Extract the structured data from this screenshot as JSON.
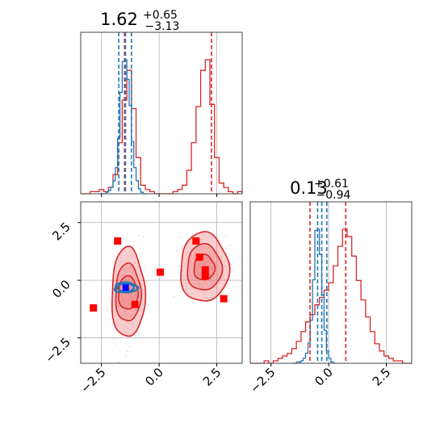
{
  "chart_data": {
    "type": "corner",
    "parameters": [
      {
        "title_main": "1.62",
        "title_sup": "+0.65",
        "title_sub": "−3.13"
      },
      {
        "title_main": "0.13",
        "title_sup": "+0.61",
        "title_sub": "−0.94"
      }
    ],
    "x_ticks": [
      "−2.5",
      "0.0",
      "2.5"
    ],
    "y_ticks": [
      "2.5",
      "0.0",
      "−2.5"
    ],
    "xlim": [
      -3.4,
      3.6
    ],
    "ylim": [
      -3.6,
      3.4
    ],
    "grid": true,
    "colors": {
      "red": "#d62728",
      "blue": "#1f77b4",
      "fill": "#ee6f6f",
      "marker_red": "#ff0000",
      "marker_blue": "#0000ff"
    },
    "series": [
      {
        "color": "#d62728",
        "param1_hist": {
          "bin_edges": [
            -3.4,
            -3.2,
            -3.0,
            -2.8,
            -2.6,
            -2.4,
            -2.2,
            -2.0,
            -1.8,
            -1.6,
            -1.4,
            -1.2,
            -1.0,
            -0.8,
            -0.6,
            -0.4,
            -0.2,
            0.0,
            0.2,
            0.4,
            0.6,
            0.8,
            1.0,
            1.2,
            1.4,
            1.6,
            1.8,
            2.0,
            2.2,
            2.4,
            2.6,
            2.8,
            3.0,
            3.2,
            3.4,
            3.6
          ],
          "counts": [
            0,
            0,
            1,
            1,
            2,
            1,
            3,
            9,
            24,
            44,
            58,
            40,
            17,
            4,
            2,
            1,
            0,
            0,
            0,
            0,
            1,
            2,
            4,
            11,
            24,
            41,
            58,
            63,
            42,
            17,
            5,
            3,
            1,
            0,
            1
          ]
        },
        "param2_hist": {
          "bin_edges": [
            -3.4,
            -3.2,
            -3.0,
            -2.8,
            -2.6,
            -2.4,
            -2.2,
            -2.0,
            -1.8,
            -1.6,
            -1.4,
            -1.2,
            -1.0,
            -0.8,
            -0.6,
            -0.4,
            -0.2,
            0.0,
            0.2,
            0.4,
            0.6,
            0.8,
            1.0,
            1.2,
            1.4,
            1.6,
            1.8,
            2.0,
            2.2,
            2.4,
            2.6,
            2.8,
            3.0,
            3.2,
            3.4,
            3.6
          ],
          "counts": [
            0,
            0,
            0,
            1,
            0,
            1,
            2,
            3,
            4,
            6,
            9,
            13,
            17,
            20,
            24,
            27,
            30,
            33,
            40,
            48,
            55,
            52,
            44,
            34,
            26,
            19,
            13,
            8,
            5,
            3,
            2,
            1,
            1,
            0,
            0
          ]
        },
        "param1_quantiles": [
          -1.5,
          2.27
        ],
        "param2_quantiles": [
          -0.81,
          0.74
        ],
        "contours": [
          {
            "center": [
              -1.35,
              -0.55
            ],
            "levels": [
              {
                "rx": 0.72,
                "ry": 1.95,
                "fill_opacity": 0.35
              },
              {
                "rx": 0.55,
                "ry": 1.25,
                "fill_opacity": 0.35
              },
              {
                "rx": 0.42,
                "ry": 0.72,
                "fill_opacity": 0.35
              }
            ]
          },
          {
            "center": [
              1.95,
              0.55
            ],
            "levels": [
              {
                "rx": 1.05,
                "ry": 1.5,
                "fill_opacity": 0.35
              },
              {
                "rx": 0.75,
                "ry": 1.0,
                "fill_opacity": 0.35
              },
              {
                "rx": 0.45,
                "ry": 0.55,
                "fill_opacity": 0.35
              }
            ]
          }
        ],
        "markers": [
          {
            "x": -2.85,
            "y": -1.2
          },
          {
            "x": -1.8,
            "y": 1.7
          },
          {
            "x": -1.05,
            "y": -1.05
          },
          {
            "x": 0.05,
            "y": 0.35
          },
          {
            "x": 1.6,
            "y": 1.7
          },
          {
            "x": 1.75,
            "y": 1.0
          },
          {
            "x": 2.0,
            "y": 0.45
          },
          {
            "x": 2.0,
            "y": 0.2
          },
          {
            "x": 2.8,
            "y": -0.8
          }
        ]
      },
      {
        "color": "#1f77b4",
        "param1_hist": {
          "bin_edges": [
            -2.6,
            -2.5,
            -2.4,
            -2.3,
            -2.2,
            -2.1,
            -2.0,
            -1.9,
            -1.8,
            -1.7,
            -1.6,
            -1.5,
            -1.4,
            -1.3,
            -1.2,
            -1.1,
            -1.0,
            -0.9,
            -0.8,
            -0.7,
            -0.6,
            -0.5
          ],
          "counts": [
            0,
            0,
            0,
            1,
            2,
            4,
            8,
            16,
            34,
            62,
            81,
            82,
            70,
            54,
            32,
            16,
            8,
            3,
            1,
            0,
            0
          ]
        },
        "param2_hist": {
          "bin_edges": [
            -1.6,
            -1.5,
            -1.4,
            -1.3,
            -1.2,
            -1.1,
            -1.0,
            -0.9,
            -0.8,
            -0.7,
            -0.6,
            -0.5,
            -0.4,
            -0.3,
            -0.2,
            -0.1,
            0.0,
            0.1,
            0.2,
            0.3
          ],
          "counts": [
            0,
            0,
            1,
            1,
            2,
            4,
            8,
            16,
            34,
            66,
            105,
            106,
            86,
            54,
            26,
            10,
            4,
            1,
            0
          ]
        },
        "param1_quantiles": [
          -1.75,
          -1.46,
          -1.2
        ],
        "param2_quantiles": [
          -0.48,
          -0.3,
          -0.08
        ],
        "contour": {
          "center": [
            -1.45,
            -0.32
          ],
          "rx": 0.5,
          "ry": 0.22
        }
      }
    ],
    "blue_marker": {
      "x": -1.45,
      "y": -0.32
    }
  }
}
